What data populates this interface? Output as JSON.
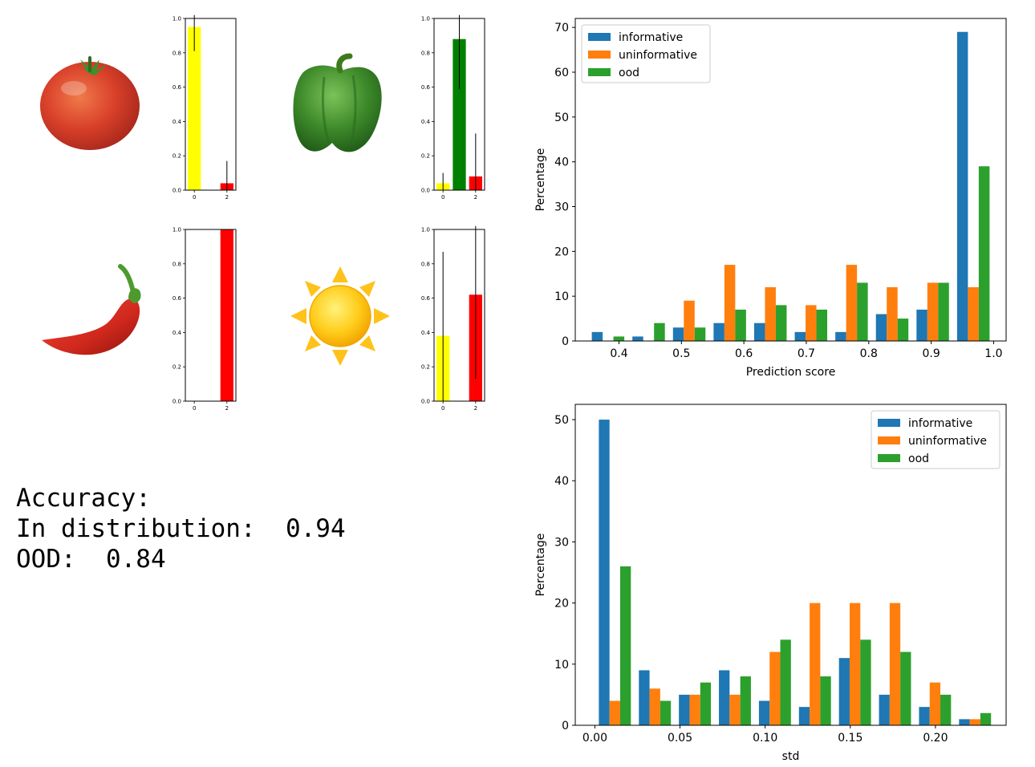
{
  "accuracy": {
    "heading": "Accuracy:",
    "in_distribution_label": "In distribution:",
    "in_distribution_value": "0.94",
    "ood_label": "OOD:",
    "ood_value": "0.84"
  },
  "icons": [
    "tomato-icon",
    "green-pepper-icon",
    "chili-pepper-icon",
    "sun-icon"
  ],
  "colors": {
    "informative": "#1f77b4",
    "uninformative": "#ff7f0e",
    "ood": "#2ca02c",
    "class0": "#ffff00",
    "class1": "#008000",
    "class2": "#ff0000"
  },
  "chart_data": [
    {
      "type": "bar",
      "id": "mini-tomato",
      "icon": "tomato-icon",
      "categories": [
        "0",
        "1",
        "2"
      ],
      "xticks": [
        "0",
        "2"
      ],
      "values": [
        0.95,
        0.0,
        0.04
      ],
      "errors": [
        0.14,
        0.0,
        0.13
      ],
      "bar_colors": [
        "#ffff00",
        "#008000",
        "#ff0000"
      ],
      "yticks": [
        "0.0",
        "0.2",
        "0.4",
        "0.6",
        "0.8",
        "1.0"
      ],
      "ylim": [
        0,
        1
      ]
    },
    {
      "type": "bar",
      "id": "mini-pepper",
      "icon": "green-pepper-icon",
      "categories": [
        "0",
        "1",
        "2"
      ],
      "xticks": [
        "0",
        "2"
      ],
      "values": [
        0.04,
        0.88,
        0.08
      ],
      "errors": [
        0.06,
        0.29,
        0.25
      ],
      "bar_colors": [
        "#ffff00",
        "#008000",
        "#ff0000"
      ],
      "yticks": [
        "0.0",
        "0.2",
        "0.4",
        "0.6",
        "0.8",
        "1.0"
      ],
      "ylim": [
        0,
        1
      ]
    },
    {
      "type": "bar",
      "id": "mini-chili",
      "icon": "chili-pepper-icon",
      "categories": [
        "0",
        "1",
        "2"
      ],
      "xticks": [
        "0",
        "2"
      ],
      "values": [
        0.0,
        0.0,
        1.0
      ],
      "errors": [
        0.0,
        0.0,
        0.0
      ],
      "bar_colors": [
        "#ffff00",
        "#008000",
        "#ff0000"
      ],
      "yticks": [
        "0.0",
        "0.2",
        "0.4",
        "0.6",
        "0.8",
        "1.0"
      ],
      "ylim": [
        0,
        1
      ]
    },
    {
      "type": "bar",
      "id": "mini-sun",
      "icon": "sun-icon",
      "categories": [
        "0",
        "1",
        "2"
      ],
      "xticks": [
        "0",
        "2"
      ],
      "values": [
        0.38,
        0.0,
        0.62
      ],
      "errors": [
        0.49,
        0.0,
        0.49
      ],
      "bar_colors": [
        "#ffff00",
        "#008000",
        "#ff0000"
      ],
      "yticks": [
        "0.0",
        "0.2",
        "0.4",
        "0.6",
        "0.8",
        "1.0"
      ],
      "ylim": [
        0,
        1
      ]
    },
    {
      "type": "bar",
      "id": "hist-prediction",
      "xlabel": "Prediction score",
      "ylabel": "Percentage",
      "xlim": [
        0.33,
        1.02
      ],
      "ylim": [
        0,
        72
      ],
      "xticks": [
        0.4,
        0.5,
        0.6,
        0.7,
        0.8,
        0.9,
        1.0
      ],
      "xtick_labels": [
        "0.4",
        "0.5",
        "0.6",
        "0.7",
        "0.8",
        "0.9",
        "1.0"
      ],
      "yticks": [
        0,
        10,
        20,
        30,
        40,
        50,
        60,
        70
      ],
      "legend": "top-left",
      "bin_edges": [
        0.35,
        0.415,
        0.48,
        0.545,
        0.61,
        0.675,
        0.74,
        0.805,
        0.87,
        0.935,
        1.0
      ],
      "series": [
        {
          "name": "informative",
          "color": "#1f77b4",
          "values": [
            2,
            1,
            3,
            4,
            4,
            2,
            2,
            6,
            7,
            69
          ]
        },
        {
          "name": "uninformative",
          "color": "#ff7f0e",
          "values": [
            0,
            0,
            9,
            17,
            12,
            8,
            17,
            12,
            13,
            12
          ]
        },
        {
          "name": "ood",
          "color": "#2ca02c",
          "values": [
            1,
            4,
            3,
            7,
            8,
            7,
            13,
            5,
            13,
            39
          ]
        }
      ]
    },
    {
      "type": "bar",
      "id": "hist-std",
      "xlabel": "std",
      "ylabel": "Percentage",
      "xlim": [
        -0.0115,
        0.2415
      ],
      "ylim": [
        0,
        52.5
      ],
      "xticks": [
        0.0,
        0.05,
        0.1,
        0.15,
        0.2
      ],
      "xtick_labels": [
        "0.00",
        "0.05",
        "0.10",
        "0.15",
        "0.20"
      ],
      "yticks": [
        0,
        10,
        20,
        30,
        40,
        50
      ],
      "legend": "top-right",
      "bin_edges": [
        0.0,
        0.0235,
        0.047,
        0.0705,
        0.094,
        0.1175,
        0.141,
        0.1645,
        0.188,
        0.2115,
        0.235
      ],
      "series": [
        {
          "name": "informative",
          "color": "#1f77b4",
          "values": [
            50,
            9,
            5,
            9,
            4,
            3,
            11,
            5,
            3,
            1
          ]
        },
        {
          "name": "uninformative",
          "color": "#ff7f0e",
          "values": [
            4,
            6,
            5,
            5,
            12,
            20,
            20,
            20,
            7,
            1
          ]
        },
        {
          "name": "ood",
          "color": "#2ca02c",
          "values": [
            26,
            4,
            7,
            8,
            14,
            8,
            14,
            12,
            5,
            2
          ]
        }
      ]
    }
  ]
}
